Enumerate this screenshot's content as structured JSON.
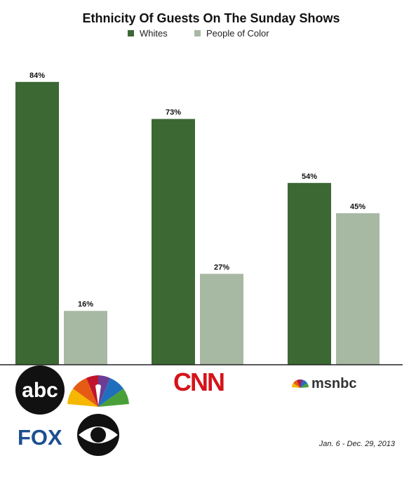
{
  "colors": {
    "whites": "#3c6834",
    "people_of_color": "#a8b9a3",
    "axis": "#222222",
    "cnn_red": "#d5141b",
    "abc_black": "#111111",
    "fox_blue": "#1d4f91",
    "msnbc_gray": "#333333"
  },
  "note": "Jan. 6 - Dec. 29, 2013",
  "logos": {
    "abc": "abc",
    "cnn": "CNN",
    "fox": "FOX",
    "msnbc": "msnbc",
    "nbc_icon": "nbc-peacock-icon",
    "cbs_icon": "cbs-eye-icon"
  },
  "chart_data": {
    "type": "bar",
    "title": "Ethnicity Of Guests On The Sunday Shows",
    "legend_position": "top-center",
    "grid": false,
    "ylim": [
      0,
      100
    ],
    "categories": [
      "ABC / NBC / FOX / CBS",
      "CNN",
      "MSNBC"
    ],
    "series": [
      {
        "name": "Whites",
        "values": [
          84,
          73,
          54
        ],
        "labels": [
          "84%",
          "73%",
          "54%"
        ]
      },
      {
        "name": "People of Color",
        "values": [
          16,
          27,
          45
        ],
        "labels": [
          "16%",
          "27%",
          "45%"
        ]
      }
    ]
  }
}
